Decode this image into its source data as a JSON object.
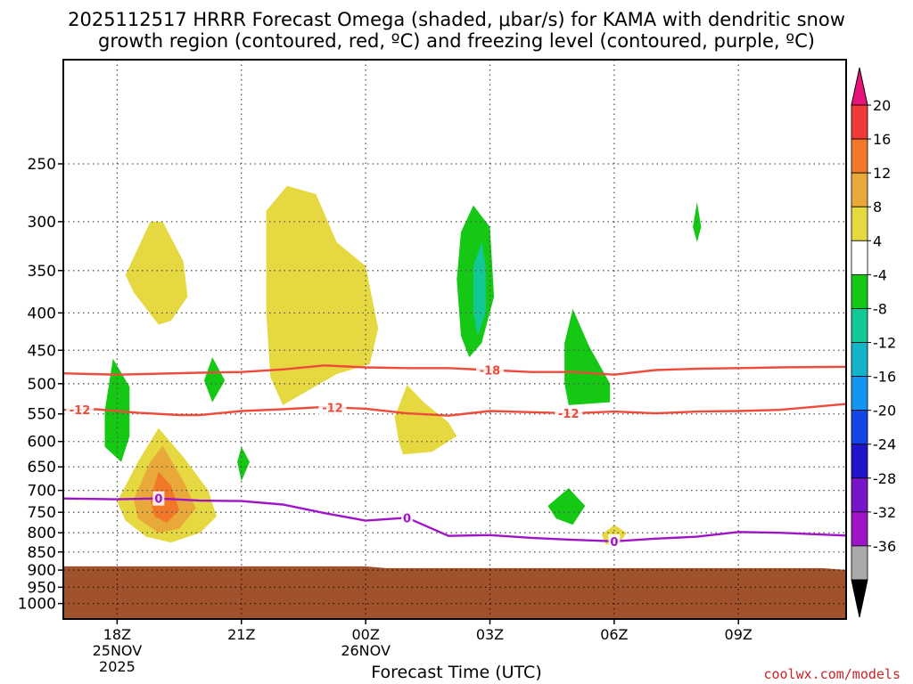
{
  "chart_data": {
    "type": "heatmap",
    "title_line1": "2025112517 HRRR Forecast Omega (shaded, μbar/s) for KAMA with dendritic snow",
    "title_line2": "growth region (contoured, red, ºC) and freezing level (contoured, purple, ºC)",
    "xlabel": "Forecast Time (UTC)",
    "ylabel": "",
    "credit": "coolwx.com/models",
    "x_range_hours": [
      16.7,
      35.6
    ],
    "y_range_hPa": [
      1050,
      180
    ],
    "y_scale": "log-pressure",
    "grid": "dotted",
    "y_ticks": [
      250,
      300,
      350,
      400,
      450,
      500,
      550,
      600,
      650,
      700,
      750,
      800,
      850,
      900,
      950,
      1000
    ],
    "x_ticks": [
      {
        "hour": 18,
        "lines": [
          "18Z",
          "25NOV",
          "2025"
        ]
      },
      {
        "hour": 21,
        "lines": [
          "21Z"
        ]
      },
      {
        "hour": 24,
        "lines": [
          "00Z",
          "26NOV"
        ]
      },
      {
        "hour": 27,
        "lines": [
          "03Z"
        ]
      },
      {
        "hour": 30,
        "lines": [
          "06Z"
        ]
      },
      {
        "hour": 33,
        "lines": [
          "09Z"
        ]
      }
    ],
    "colorbar": {
      "labels": [
        "20",
        "16",
        "12",
        "8",
        "4",
        "-4",
        "-8",
        "-12",
        "-16",
        "-20",
        "-24",
        "-28",
        "-32",
        "-36"
      ],
      "colors": [
        "#e8147a",
        "#f23a3a",
        "#f07828",
        "#e8a83a",
        "#e6d840",
        "#ffffff",
        "#14c814",
        "#14c896",
        "#14b4c8",
        "#1496f0",
        "#1446e6",
        "#2014c8",
        "#7814c8",
        "#a014c8",
        "#aaaaaa",
        "#000000"
      ]
    },
    "terrain": {
      "surface_hPa": 892,
      "color": "#a0522d"
    },
    "contours": [
      {
        "name": "-18",
        "color": "#f04a3a",
        "points": [
          [
            16.7,
            484
          ],
          [
            18,
            486
          ],
          [
            20,
            483
          ],
          [
            21,
            482
          ],
          [
            22,
            478
          ],
          [
            23,
            472
          ],
          [
            24,
            475
          ],
          [
            25,
            476
          ],
          [
            26,
            476
          ],
          [
            27,
            479
          ],
          [
            28,
            482
          ],
          [
            29,
            482
          ],
          [
            30,
            486
          ],
          [
            31,
            479
          ],
          [
            32,
            477
          ],
          [
            33,
            476
          ],
          [
            34,
            475
          ],
          [
            35.6,
            474
          ]
        ],
        "labels": [
          {
            "hour": 27.0,
            "text": "-18"
          }
        ]
      },
      {
        "name": "-12",
        "color": "#f04a3a",
        "points": [
          [
            16.7,
            543
          ],
          [
            17.5,
            542
          ],
          [
            18.5,
            548
          ],
          [
            19.5,
            552
          ],
          [
            20,
            552
          ],
          [
            21,
            545
          ],
          [
            22,
            542
          ],
          [
            23,
            538
          ],
          [
            24,
            541
          ],
          [
            25,
            549
          ],
          [
            26,
            553
          ],
          [
            27,
            545
          ],
          [
            28,
            547
          ],
          [
            29,
            549
          ],
          [
            30,
            546
          ],
          [
            31,
            549
          ],
          [
            32,
            546
          ],
          [
            33,
            545
          ],
          [
            34,
            543
          ],
          [
            35.6,
            533
          ]
        ],
        "labels": [
          {
            "hour": 17.1,
            "text": "-12"
          },
          {
            "hour": 23.2,
            "text": "-12"
          },
          {
            "hour": 28.9,
            "text": "-12"
          }
        ]
      },
      {
        "name": "0",
        "color": "#a014c8",
        "points": [
          [
            16.7,
            718
          ],
          [
            18,
            720
          ],
          [
            19,
            718
          ],
          [
            20,
            723
          ],
          [
            21,
            724
          ],
          [
            22,
            732
          ],
          [
            23,
            752
          ],
          [
            24,
            770
          ],
          [
            25,
            763
          ],
          [
            26,
            808
          ],
          [
            27,
            806
          ],
          [
            28,
            813
          ],
          [
            29,
            818
          ],
          [
            30,
            822
          ],
          [
            31,
            815
          ],
          [
            32,
            810
          ],
          [
            33,
            798
          ],
          [
            34,
            800
          ],
          [
            35.6,
            807
          ]
        ],
        "labels": [
          {
            "hour": 19.0,
            "text": "0"
          },
          {
            "hour": 25.0,
            "text": "0"
          },
          {
            "hour": 30.0,
            "text": "0"
          }
        ]
      }
    ],
    "shaded_regions": [
      {
        "level": "4",
        "color": "#e6d840",
        "points": [
          [
            18.2,
            355
          ],
          [
            18.8,
            300
          ],
          [
            19.1,
            300
          ],
          [
            19.6,
            340
          ],
          [
            19.7,
            380
          ],
          [
            19.3,
            410
          ],
          [
            19.0,
            415
          ],
          [
            18.4,
            375
          ]
        ]
      },
      {
        "level": "4",
        "color": "#e6d840",
        "points": [
          [
            21.6,
            290
          ],
          [
            22.1,
            268
          ],
          [
            22.8,
            275
          ],
          [
            23.3,
            320
          ],
          [
            24.0,
            345
          ],
          [
            24.3,
            420
          ],
          [
            24.1,
            470
          ],
          [
            23.3,
            485
          ],
          [
            22.0,
            535
          ],
          [
            21.7,
            490
          ],
          [
            21.6,
            400
          ]
        ]
      },
      {
        "level": "4",
        "color": "#e6d840",
        "points": [
          [
            24.7,
            555
          ],
          [
            25.0,
            502
          ],
          [
            25.4,
            530
          ],
          [
            26.0,
            565
          ],
          [
            26.2,
            590
          ],
          [
            25.6,
            620
          ],
          [
            24.9,
            625
          ],
          [
            24.8,
            600
          ]
        ]
      },
      {
        "level": "4",
        "color": "#e6d840",
        "points": [
          [
            18.0,
            725
          ],
          [
            18.5,
            640
          ],
          [
            19.0,
            575
          ],
          [
            19.6,
            630
          ],
          [
            20.2,
            700
          ],
          [
            20.4,
            760
          ],
          [
            20.0,
            800
          ],
          [
            19.3,
            825
          ],
          [
            18.7,
            810
          ],
          [
            18.2,
            770
          ]
        ]
      },
      {
        "level": "8",
        "color": "#e8a83a",
        "points": [
          [
            18.4,
            720
          ],
          [
            18.8,
            640
          ],
          [
            19.1,
            608
          ],
          [
            19.6,
            680
          ],
          [
            19.9,
            740
          ],
          [
            19.5,
            790
          ],
          [
            19.0,
            800
          ],
          [
            18.5,
            765
          ]
        ]
      },
      {
        "level": "12",
        "color": "#f07828",
        "points": [
          [
            18.8,
            720
          ],
          [
            19.0,
            660
          ],
          [
            19.3,
            690
          ],
          [
            19.5,
            745
          ],
          [
            19.2,
            775
          ],
          [
            18.9,
            760
          ]
        ]
      },
      {
        "level": "4",
        "color": "#e6d840",
        "points": [
          [
            29.7,
            805
          ],
          [
            30.0,
            780
          ],
          [
            30.3,
            800
          ],
          [
            30.1,
            832
          ],
          [
            29.8,
            830
          ]
        ]
      },
      {
        "level": "-4",
        "color": "#14c814",
        "points": [
          [
            17.7,
            545
          ],
          [
            17.9,
            462
          ],
          [
            18.3,
            505
          ],
          [
            18.3,
            590
          ],
          [
            18.1,
            640
          ],
          [
            17.7,
            610
          ]
        ]
      },
      {
        "level": "-4",
        "color": "#14c814",
        "points": [
          [
            20.1,
            495
          ],
          [
            20.3,
            460
          ],
          [
            20.6,
            495
          ],
          [
            20.3,
            530
          ]
        ]
      },
      {
        "level": "-4",
        "color": "#14c814",
        "points": [
          [
            20.9,
            640
          ],
          [
            21.0,
            610
          ],
          [
            21.2,
            640
          ],
          [
            21.0,
            680
          ]
        ]
      },
      {
        "level": "-4",
        "color": "#14c814",
        "points": [
          [
            26.3,
            310
          ],
          [
            26.6,
            285
          ],
          [
            27.0,
            305
          ],
          [
            27.1,
            380
          ],
          [
            26.8,
            440
          ],
          [
            26.5,
            460
          ],
          [
            26.3,
            430
          ],
          [
            26.2,
            360
          ]
        ]
      },
      {
        "level": "-8",
        "color": "#14c896",
        "points": [
          [
            26.6,
            345
          ],
          [
            26.8,
            320
          ],
          [
            26.9,
            345
          ],
          [
            26.9,
            400
          ],
          [
            26.7,
            430
          ],
          [
            26.6,
            400
          ]
        ]
      },
      {
        "level": "-4",
        "color": "#14c814",
        "points": [
          [
            28.8,
            440
          ],
          [
            29.0,
            395
          ],
          [
            29.4,
            445
          ],
          [
            29.9,
            500
          ],
          [
            29.9,
            530
          ],
          [
            28.9,
            535
          ],
          [
            28.8,
            500
          ]
        ]
      },
      {
        "level": "-4",
        "color": "#14c814",
        "points": [
          [
            28.4,
            735
          ],
          [
            28.9,
            695
          ],
          [
            29.3,
            735
          ],
          [
            29.0,
            780
          ],
          [
            28.6,
            765
          ]
        ]
      },
      {
        "level": "-4",
        "color": "#14c814",
        "points": [
          [
            31.9,
            305
          ],
          [
            32.0,
            282
          ],
          [
            32.1,
            305
          ],
          [
            32.0,
            320
          ]
        ]
      }
    ]
  }
}
